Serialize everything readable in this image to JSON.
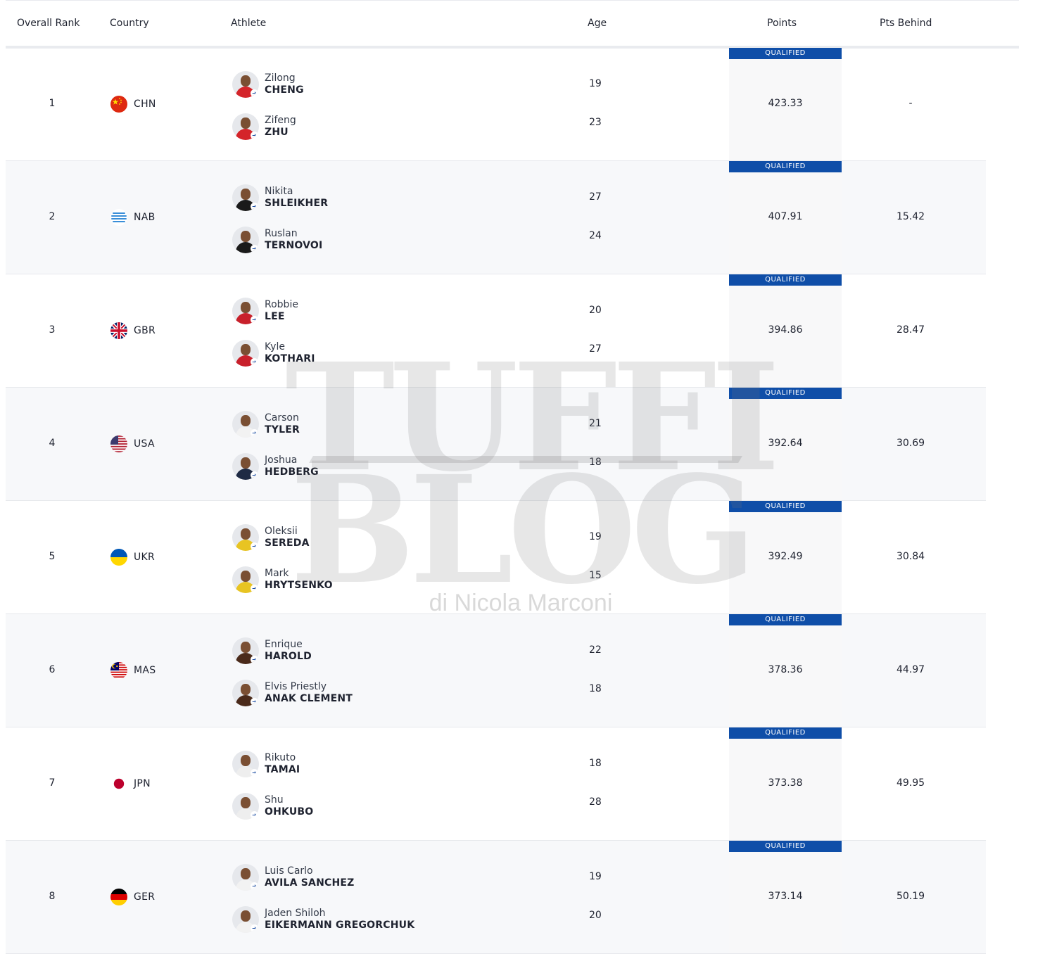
{
  "header": {
    "rank": "Overall Rank",
    "country": "Country",
    "athlete": "Athlete",
    "age": "Age",
    "points": "Points",
    "behind": "Pts Behind"
  },
  "status_label": "QUALIFIED",
  "colors": {
    "qualified_bg": "#0f4ea8",
    "row_alt": "#f7f8fa",
    "points_bg": "#f8f8f9"
  },
  "rows": [
    {
      "rank": "1",
      "code": "CHN",
      "flag": "china-flag-icon",
      "points": "423.33",
      "behind": "-",
      "athletes": [
        {
          "first": "Zilong",
          "last": "CHENG",
          "age": "19",
          "kit": "#d4242a"
        },
        {
          "first": "Zifeng",
          "last": "ZHU",
          "age": "23",
          "kit": "#d4242a"
        }
      ]
    },
    {
      "rank": "2",
      "code": "NAB",
      "flag": "nab-flag-icon",
      "points": "407.91",
      "behind": "15.42",
      "athletes": [
        {
          "first": "Nikita",
          "last": "SHLEIKHER",
          "age": "27",
          "kit": "#1a1a1a"
        },
        {
          "first": "Ruslan",
          "last": "TERNOVOI",
          "age": "24",
          "kit": "#1a1a1a"
        }
      ]
    },
    {
      "rank": "3",
      "code": "GBR",
      "flag": "gb-flag-icon",
      "points": "394.86",
      "behind": "28.47",
      "athletes": [
        {
          "first": "Robbie",
          "last": "LEE",
          "age": "20",
          "kit": "#c8202b"
        },
        {
          "first": "Kyle",
          "last": "KOTHARI",
          "age": "27",
          "kit": "#c8202b"
        }
      ]
    },
    {
      "rank": "4",
      "code": "USA",
      "flag": "usa-flag-icon",
      "points": "392.64",
      "behind": "30.69",
      "athletes": [
        {
          "first": "Carson",
          "last": "TYLER",
          "age": "21",
          "kit": "#f2f2f2"
        },
        {
          "first": "Joshua",
          "last": "HEDBERG",
          "age": "18",
          "kit": "#1e2a44"
        }
      ]
    },
    {
      "rank": "5",
      "code": "UKR",
      "flag": "ukraine-flag-icon",
      "points": "392.49",
      "behind": "30.84",
      "athletes": [
        {
          "first": "Oleksii",
          "last": "SEREDA",
          "age": "19",
          "kit": "#e8c422"
        },
        {
          "first": "Mark",
          "last": "HRYTSENKO",
          "age": "15",
          "kit": "#e8c422"
        }
      ]
    },
    {
      "rank": "6",
      "code": "MAS",
      "flag": "malaysia-flag-icon",
      "points": "378.36",
      "behind": "44.97",
      "athletes": [
        {
          "first": "Enrique",
          "last": "HAROLD",
          "age": "22",
          "kit": "#4a2a1a"
        },
        {
          "first": "Elvis Priestly",
          "last": "ANAK CLEMENT",
          "age": "18",
          "kit": "#4a2a1a"
        }
      ]
    },
    {
      "rank": "7",
      "code": "JPN",
      "flag": "japan-flag-icon",
      "points": "373.38",
      "behind": "49.95",
      "athletes": [
        {
          "first": "Rikuto",
          "last": "TAMAI",
          "age": "18",
          "kit": "#eeeeee"
        },
        {
          "first": "Shu",
          "last": "OHKUBO",
          "age": "28",
          "kit": "#eeeeee"
        }
      ]
    },
    {
      "rank": "8",
      "code": "GER",
      "flag": "germany-flag-icon",
      "points": "373.14",
      "behind": "50.19",
      "athletes": [
        {
          "first": "Luis Carlo",
          "last": "AVILA SANCHEZ",
          "age": "19",
          "kit": "#f2f2f2"
        },
        {
          "first": "Jaden Shiloh",
          "last": "EIKERMANN GREGORCHUK",
          "age": "20",
          "kit": "#f2f2f2"
        }
      ]
    }
  ],
  "watermark": {
    "line1": "TUFFI",
    "line2": "BLOG",
    "line3": "di Nicola Marconi"
  }
}
